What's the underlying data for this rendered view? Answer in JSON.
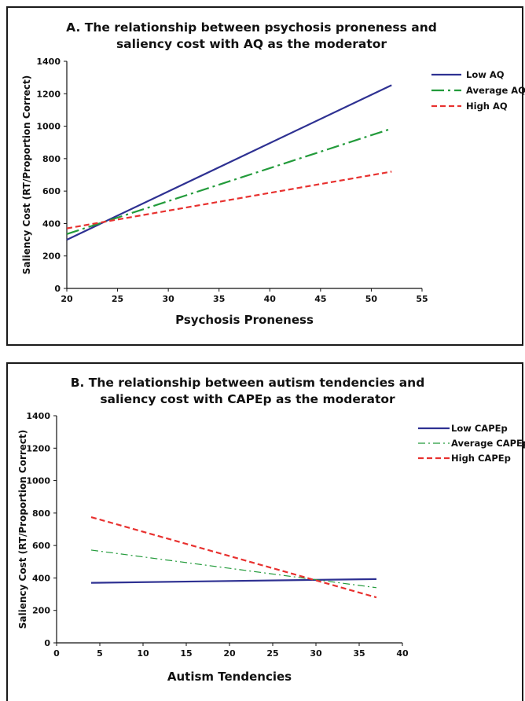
{
  "chart_data": [
    {
      "type": "line",
      "title": [
        "A. The relationship between psychosis proneness and",
        "saliency cost with AQ as the moderator"
      ],
      "xlabel": "Psychosis Proneness",
      "ylabel": "Saliency Cost (RT/Proportion Correct)",
      "xlim": [
        20,
        55
      ],
      "ylim": [
        0,
        1400
      ],
      "x_ticks": [
        "20",
        "25",
        "30",
        "35",
        "40",
        "45",
        "50",
        "55"
      ],
      "y_ticks": [
        "0",
        "200",
        "400",
        "600",
        "800",
        "1000",
        "1200",
        "1400"
      ],
      "grid": false,
      "legend": "right",
      "series": [
        {
          "name": "Low AQ",
          "color": "#2e3192",
          "style": "solid",
          "x": [
            20,
            52
          ],
          "y": [
            300,
            1253
          ]
        },
        {
          "name": "Average AQ",
          "color": "#239b3b",
          "style": "dashdot",
          "x": [
            20,
            52
          ],
          "y": [
            335,
            985
          ]
        },
        {
          "name": "High AQ",
          "color": "#e8312f",
          "style": "dashed",
          "x": [
            20,
            52
          ],
          "y": [
            370,
            720
          ]
        }
      ]
    },
    {
      "type": "line",
      "title": [
        "B. The relationship between autism tendencies and",
        "saliency cost with CAPEp as the moderator"
      ],
      "xlabel": "Autism Tendencies",
      "ylabel": "Saliency Cost (RT/Proportion Correct)",
      "xlim": [
        0,
        40
      ],
      "ylim": [
        0,
        1400
      ],
      "x_ticks": [
        "0",
        "5",
        "10",
        "15",
        "20",
        "25",
        "30",
        "35",
        "40"
      ],
      "y_ticks": [
        "0",
        "200",
        "400",
        "600",
        "800",
        "1000",
        "1200",
        "1400"
      ],
      "grid": false,
      "legend": "right",
      "series": [
        {
          "name": "Low CAPEp",
          "color": "#2e3192",
          "style": "solid",
          "x": [
            4,
            37
          ],
          "y": [
            370,
            393
          ]
        },
        {
          "name": "Average CAPEp",
          "color": "#239b3b",
          "style": "dashdot-thin",
          "x": [
            4,
            37
          ],
          "y": [
            572,
            340
          ]
        },
        {
          "name": "High CAPEp",
          "color": "#e8312f",
          "style": "dashed",
          "x": [
            4,
            37
          ],
          "y": [
            775,
            280
          ]
        }
      ]
    }
  ]
}
